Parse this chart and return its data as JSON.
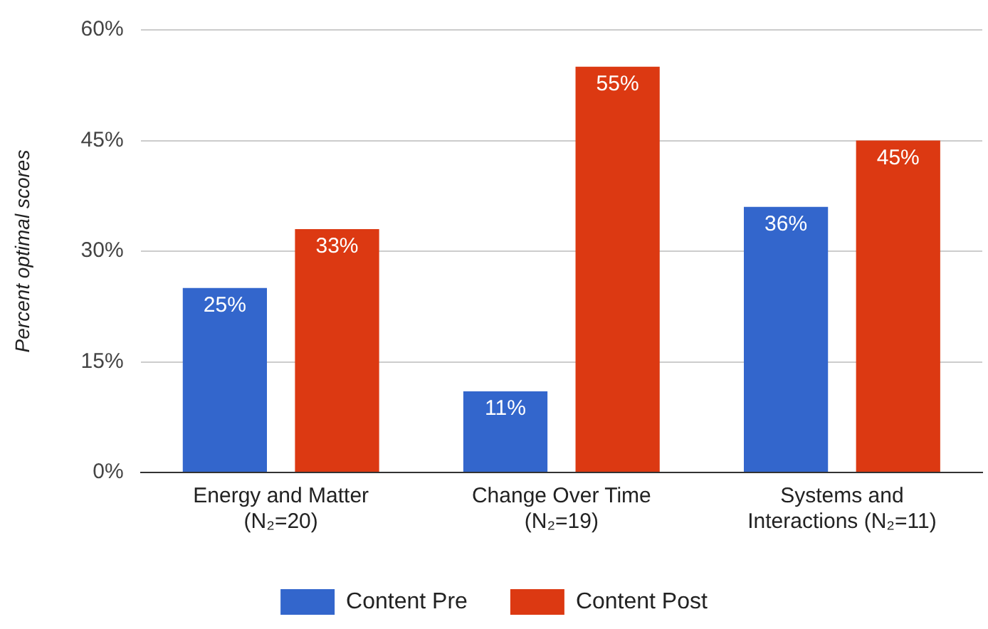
{
  "chart_data": {
    "type": "bar",
    "ylabel": "Percent optimal scores",
    "categories": [
      "Energy and Matter\n(N₂=20)",
      "Change Over Time\n(N₂=19)",
      "Systems and\nInteractions (N₂=11)"
    ],
    "series": [
      {
        "name": "Content Pre",
        "color": "#3366cc",
        "values": [
          25,
          11,
          36
        ],
        "value_labels": [
          "25%",
          "11%",
          "36%"
        ]
      },
      {
        "name": "Content Post",
        "color": "#dc3912",
        "values": [
          33,
          55,
          45
        ],
        "value_labels": [
          "33%",
          "55%",
          "45%"
        ]
      }
    ],
    "ylim": [
      0,
      60
    ],
    "yticks": [
      {
        "value": 0,
        "label": "0%"
      },
      {
        "value": 15,
        "label": "15%"
      },
      {
        "value": 30,
        "label": "30%"
      },
      {
        "value": 45,
        "label": "45%"
      },
      {
        "value": 60,
        "label": "60%"
      }
    ],
    "grid": "y",
    "legend": "bottom"
  }
}
